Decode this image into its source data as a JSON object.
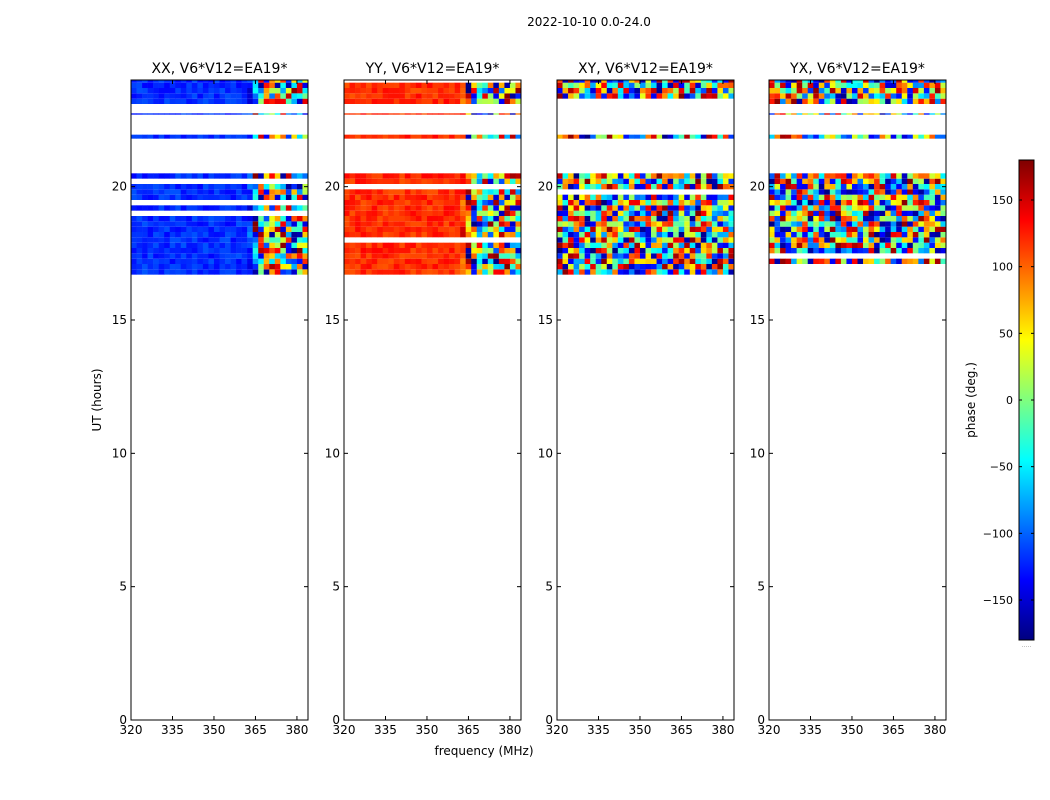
{
  "chart_data": {
    "type": "heatmap",
    "title": "2022-10-10 0.0-24.0",
    "xlabel": "frequency (MHz)",
    "ylabel": "UT (hours)",
    "xlim": [
      320,
      384
    ],
    "ylim": [
      0,
      24
    ],
    "x_ticks": [
      320,
      335,
      350,
      365,
      380
    ],
    "y_ticks": [
      0,
      5,
      10,
      15,
      20
    ],
    "panels": [
      {
        "name": "XX, V6*V12=EA19*",
        "base_phase": -120,
        "noise": 15
      },
      {
        "name": "YY, V6*V12=EA19*",
        "base_phase": 120,
        "noise": 15
      },
      {
        "name": "XY, V6*V12=EA19*",
        "base_phase": 0,
        "noise": 180
      },
      {
        "name": "YX, V6*V12=EA19*",
        "base_phase": 60,
        "noise": 180
      }
    ],
    "data_time_ranges_hours": [
      [
        16.7,
        20.5
      ],
      [
        21.8,
        21.95
      ],
      [
        22.7,
        22.75
      ],
      [
        23.1,
        24.0
      ]
    ],
    "colorbar": {
      "label": "phase (deg.)",
      "range": [
        -180,
        180
      ],
      "ticks": [
        150,
        100,
        50,
        0,
        -50,
        -100,
        -150
      ],
      "tick_labels": [
        "150",
        "100",
        "50",
        "0",
        "−50",
        "−100",
        "−150"
      ],
      "colormap": "jet",
      "colors": [
        "#00007f",
        "#0000ff",
        "#007fff",
        "#00ffff",
        "#7fff7f",
        "#ffff00",
        "#ff7f00",
        "#ff0000",
        "#7f0000"
      ],
      "note": "....."
    }
  }
}
